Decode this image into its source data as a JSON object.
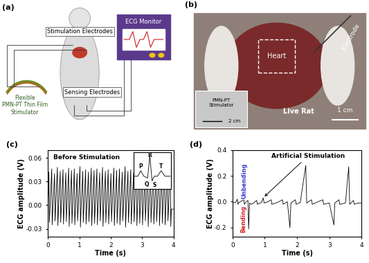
{
  "panel_a": {
    "label": "(a)",
    "stimulator": "Flexible\nPMN-PT Thin Film\nStimulator",
    "stimulation_electrodes": "Stimulation Electrodes",
    "sensing_electrodes": "Sensing Electrodes",
    "monitor": "ECG Monitor"
  },
  "panel_b": {
    "label": "(b)",
    "electrode": "Electrode",
    "heart": "Heart",
    "stimulator": "PMN-PT\nStimulator",
    "inset_scale": "2 cm",
    "subject": "Live Rat",
    "scale": "1 cm"
  },
  "chart_data": [
    {
      "type": "line",
      "title": "(c)",
      "x_label": "Time (s)",
      "y_label": "ECG amplitude (V)",
      "annotations": [
        {
          "text": "Before Stimulation"
        }
      ],
      "inset": {
        "labels": [
          "P",
          "Q",
          "R",
          "S",
          "T"
        ]
      },
      "x": [
        0,
        0.03,
        0.045,
        0.065,
        0.12,
        0.135,
        0.155,
        0.21,
        0.225,
        0.245,
        0.3,
        0.315,
        0.335,
        0.39,
        0.405,
        0.425,
        0.48,
        0.495,
        0.515,
        0.57,
        0.585,
        0.605,
        0.66,
        0.675,
        0.695,
        0.75,
        0.765,
        0.785,
        0.84,
        0.855,
        0.875,
        0.93,
        0.945,
        0.965,
        1.02,
        1.035,
        1.055,
        1.11,
        1.125,
        1.145,
        1.2,
        1.215,
        1.235,
        1.29,
        1.305,
        1.325,
        1.38,
        1.395,
        1.415,
        1.47,
        1.485,
        1.505,
        1.56,
        1.575,
        1.595,
        1.65,
        1.665,
        1.685,
        1.74,
        1.755,
        1.775,
        1.83,
        1.845,
        1.865,
        1.92,
        1.935,
        1.955,
        2.01,
        2.025,
        2.045,
        2.1,
        2.115,
        2.135,
        2.19,
        2.205,
        2.225,
        2.28,
        2.295,
        2.315,
        2.37,
        2.385,
        2.405,
        2.46,
        2.475,
        2.495,
        2.55,
        2.565,
        2.585,
        2.64,
        2.655,
        2.675,
        2.73,
        2.745,
        2.765,
        2.82,
        2.835,
        2.855,
        2.91,
        2.925,
        2.945,
        3.0,
        3.015,
        3.035,
        3.09,
        3.105,
        3.125,
        3.18,
        3.195,
        3.215,
        3.27,
        3.285,
        3.305,
        3.36,
        3.375,
        3.395,
        3.45,
        3.465,
        3.485,
        3.54,
        3.555,
        3.575,
        3.63,
        3.645,
        3.665,
        3.72,
        3.735,
        3.755,
        3.81,
        3.825,
        3.845,
        3.9,
        3.915,
        3.935,
        4.0
      ],
      "series": [
        {
          "name": "ECG",
          "color": "#000000",
          "line_style": "solid",
          "values": [
            -0.005,
            0.042,
            -0.022,
            -0.004,
            0.046,
            -0.025,
            -0.006,
            0.04,
            -0.02,
            -0.003,
            0.048,
            -0.026,
            -0.005,
            0.043,
            -0.022,
            -0.004,
            0.045,
            -0.024,
            -0.006,
            0.041,
            -0.021,
            -0.003,
            0.047,
            -0.027,
            -0.005,
            0.044,
            -0.023,
            -0.004,
            0.046,
            -0.025,
            -0.006,
            0.04,
            -0.02,
            -0.003,
            0.049,
            -0.028,
            -0.005,
            0.043,
            -0.022,
            -0.004,
            0.045,
            -0.024,
            -0.006,
            0.042,
            -0.021,
            -0.003,
            0.047,
            -0.026,
            -0.005,
            0.044,
            -0.023,
            -0.004,
            0.046,
            -0.025,
            -0.006,
            0.041,
            -0.02,
            -0.003,
            0.048,
            -0.027,
            -0.005,
            0.043,
            -0.022,
            -0.004,
            0.045,
            -0.024,
            -0.006,
            0.04,
            -0.021,
            -0.003,
            0.047,
            -0.026,
            -0.005,
            0.044,
            -0.023,
            -0.004,
            0.046,
            -0.025,
            -0.006,
            0.042,
            -0.02,
            -0.003,
            0.049,
            -0.028,
            -0.005,
            0.043,
            -0.022,
            -0.004,
            0.045,
            -0.024,
            -0.006,
            0.041,
            -0.021,
            -0.003,
            0.047,
            -0.026,
            -0.005,
            0.044,
            -0.023,
            -0.004,
            0.046,
            -0.025,
            -0.006,
            0.04,
            -0.02,
            -0.003,
            0.048,
            -0.027,
            -0.005,
            0.043,
            -0.022,
            -0.004,
            0.045,
            -0.024,
            -0.006,
            0.042,
            -0.021,
            -0.003,
            0.047,
            -0.026,
            -0.005,
            0.044,
            -0.023,
            -0.004,
            0.046,
            -0.025,
            -0.006,
            0.041,
            -0.02,
            -0.003,
            0.048,
            -0.027,
            -0.005,
            -0.005
          ]
        }
      ],
      "xlim": [
        0,
        4
      ],
      "xticks": [
        0,
        1,
        2,
        3,
        4
      ],
      "ylim": [
        -0.04,
        0.07
      ],
      "yticks": [
        {
          "value": -0.03,
          "label": "-0.03"
        },
        {
          "value": 0.0,
          "label": "0.00"
        },
        {
          "value": 0.03,
          "label": "0.03"
        },
        {
          "value": 0.06,
          "label": "0.06"
        }
      ]
    },
    {
      "type": "line",
      "title": "(d)",
      "x_label": "Time (s)",
      "y_label": "ECG amplitude (V)",
      "annotations": [
        {
          "text": "Artificial Stimulation",
          "x": 0.95,
          "y": 0.03
        },
        {
          "text": "Unbending",
          "color": "#3a3acc"
        },
        {
          "text": "Bending",
          "color": "#d02020"
        }
      ],
      "x": [
        0,
        0.1,
        0.15,
        0.17,
        0.2,
        0.35,
        0.37,
        0.42,
        0.48,
        0.5,
        0.53,
        0.6,
        0.75,
        0.77,
        0.9,
        0.95,
        0.98,
        1.1,
        1.2,
        1.22,
        1.4,
        1.55,
        1.57,
        1.7,
        1.78,
        1.81,
        1.95,
        1.97,
        2.1,
        2.27,
        2.3,
        2.45,
        2.47,
        2.65,
        2.8,
        2.82,
        3.0,
        3.14,
        3.17,
        3.3,
        3.32,
        3.5,
        3.6,
        3.63,
        3.75,
        3.77,
        3.9,
        4.0
      ],
      "series": [
        {
          "name": "ECG",
          "color": "#000000",
          "line_style": "solid",
          "values": [
            -0.01,
            -0.005,
            0.02,
            -0.02,
            -0.005,
            0.015,
            -0.02,
            0.0,
            0.01,
            -0.21,
            -0.01,
            -0.02,
            0.01,
            -0.02,
            -0.005,
            0.03,
            -0.01,
            0.0,
            0.015,
            -0.02,
            -0.005,
            0.015,
            -0.02,
            0.0,
            -0.2,
            -0.01,
            0.015,
            -0.02,
            -0.005,
            0.28,
            -0.01,
            0.015,
            -0.02,
            0.0,
            0.015,
            -0.02,
            -0.01,
            -0.18,
            -0.01,
            0.015,
            -0.02,
            -0.01,
            0.27,
            -0.02,
            0.01,
            -0.02,
            -0.01,
            -0.01
          ]
        }
      ],
      "xlim": [
        0,
        4
      ],
      "xticks": [
        0,
        1,
        2,
        3,
        4
      ],
      "ylim": [
        -0.27,
        0.4
      ],
      "yticks": [
        {
          "value": -0.2,
          "label": "-0.2"
        },
        {
          "value": 0,
          "label": "0.0"
        },
        {
          "value": 0.2,
          "label": "0.2"
        },
        {
          "value": 0.4,
          "label": "0.4"
        }
      ]
    }
  ]
}
